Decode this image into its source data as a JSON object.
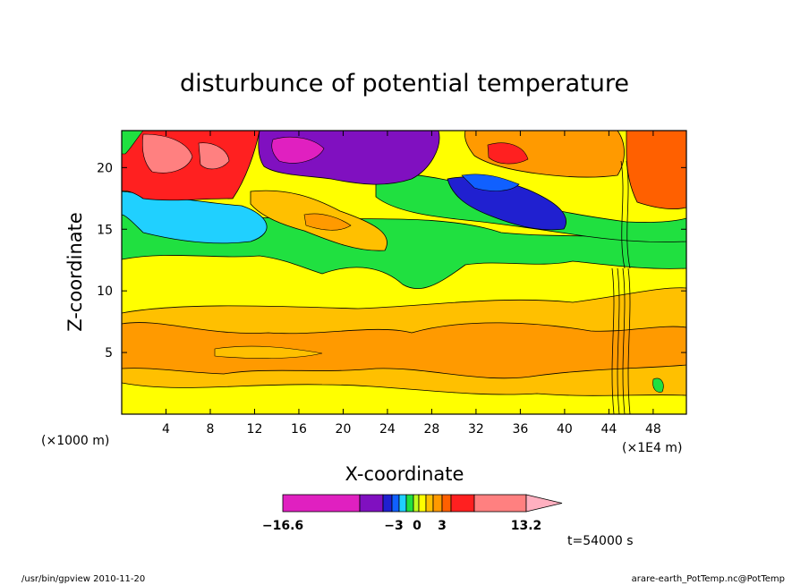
{
  "chart_data": {
    "type": "heatmap",
    "title": "disturbunce of potential temperature",
    "xlabel": "X-coordinate",
    "ylabel": "Z-coordinate",
    "x_unit_left": "(×1000 m)",
    "x_unit_right": "(×1E4 m)",
    "xlim": [
      0,
      51
    ],
    "ylim": [
      0,
      23
    ],
    "x_ticks": [
      4,
      8,
      12,
      16,
      20,
      24,
      28,
      32,
      36,
      40,
      44,
      48
    ],
    "y_ticks": [
      5,
      10,
      15,
      20
    ],
    "colorbar": {
      "tick_labels": [
        "−16.6",
        "−3",
        "0",
        "3",
        "13.2"
      ],
      "tick_values": [
        -16.6,
        -3,
        0,
        3,
        13.2
      ],
      "extend": "max",
      "colors": [
        "#e020c0",
        "#8010c0",
        "#2020d0",
        "#1060ff",
        "#20d0ff",
        "#20e040",
        "#c0ff20",
        "#ffff00",
        "#ffc000",
        "#ff9a00",
        "#ff6000",
        "#ff2020",
        "#ff8080",
        "#ffb0c0"
      ]
    },
    "time_label": "t=54000 s"
  },
  "footer": {
    "left": "/usr/bin/gpview   2010-11-20",
    "right": "arare-earth_PotTemp.nc@PotTemp"
  }
}
